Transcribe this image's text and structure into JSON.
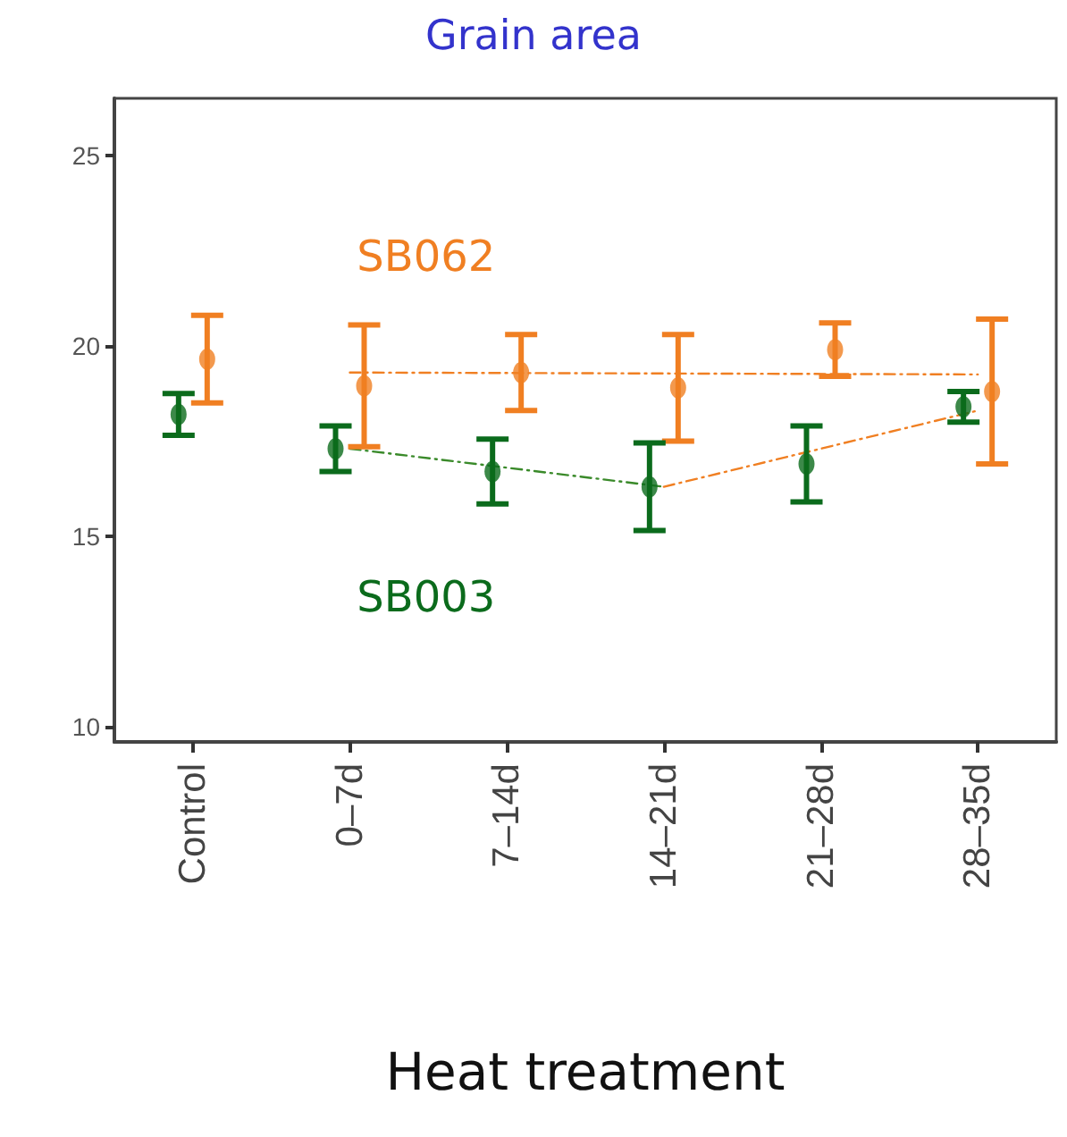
{
  "chart_data": {
    "type": "scatter",
    "title": "Grain area",
    "xlabel": "Heat treatment",
    "categories": [
      "Control",
      "0–7d",
      "7–14d",
      "14–21d",
      "21–28d",
      "28–35d"
    ],
    "series": [
      {
        "name": "SB062",
        "color": "#f07f22",
        "values": [
          19.65,
          18.95,
          19.3,
          18.9,
          19.9,
          18.8
        ],
        "errors": [
          1.15,
          1.6,
          1.0,
          1.4,
          0.7,
          1.9
        ]
      },
      {
        "name": "SB003",
        "color": "#0b6b1c",
        "values": [
          18.2,
          17.3,
          16.7,
          16.3,
          16.9,
          18.4
        ],
        "errors": [
          0.55,
          0.6,
          0.85,
          1.15,
          1.0,
          0.4
        ]
      },
      {
        "type": "line",
        "color": "#f07f22",
        "values": [
          null,
          19.3,
          null,
          null,
          null,
          19.25
        ],
        "line_style": "dashed",
        "marker": "none"
      },
      {
        "type": "line",
        "color": "#3a8a2a",
        "values": [
          null,
          17.3,
          null,
          16.3,
          null,
          null
        ],
        "line_style": "dashed",
        "marker": "none"
      },
      {
        "type": "line",
        "color": "#f07f22",
        "values": [
          null,
          null,
          null,
          16.3,
          null,
          18.3
        ],
        "line_style": "dashed",
        "marker": "none"
      }
    ],
    "ylim": [
      9.6,
      26.5
    ],
    "yticks": [
      10,
      15,
      20,
      25
    ],
    "grid": false,
    "legend": false,
    "marker": "circle"
  }
}
